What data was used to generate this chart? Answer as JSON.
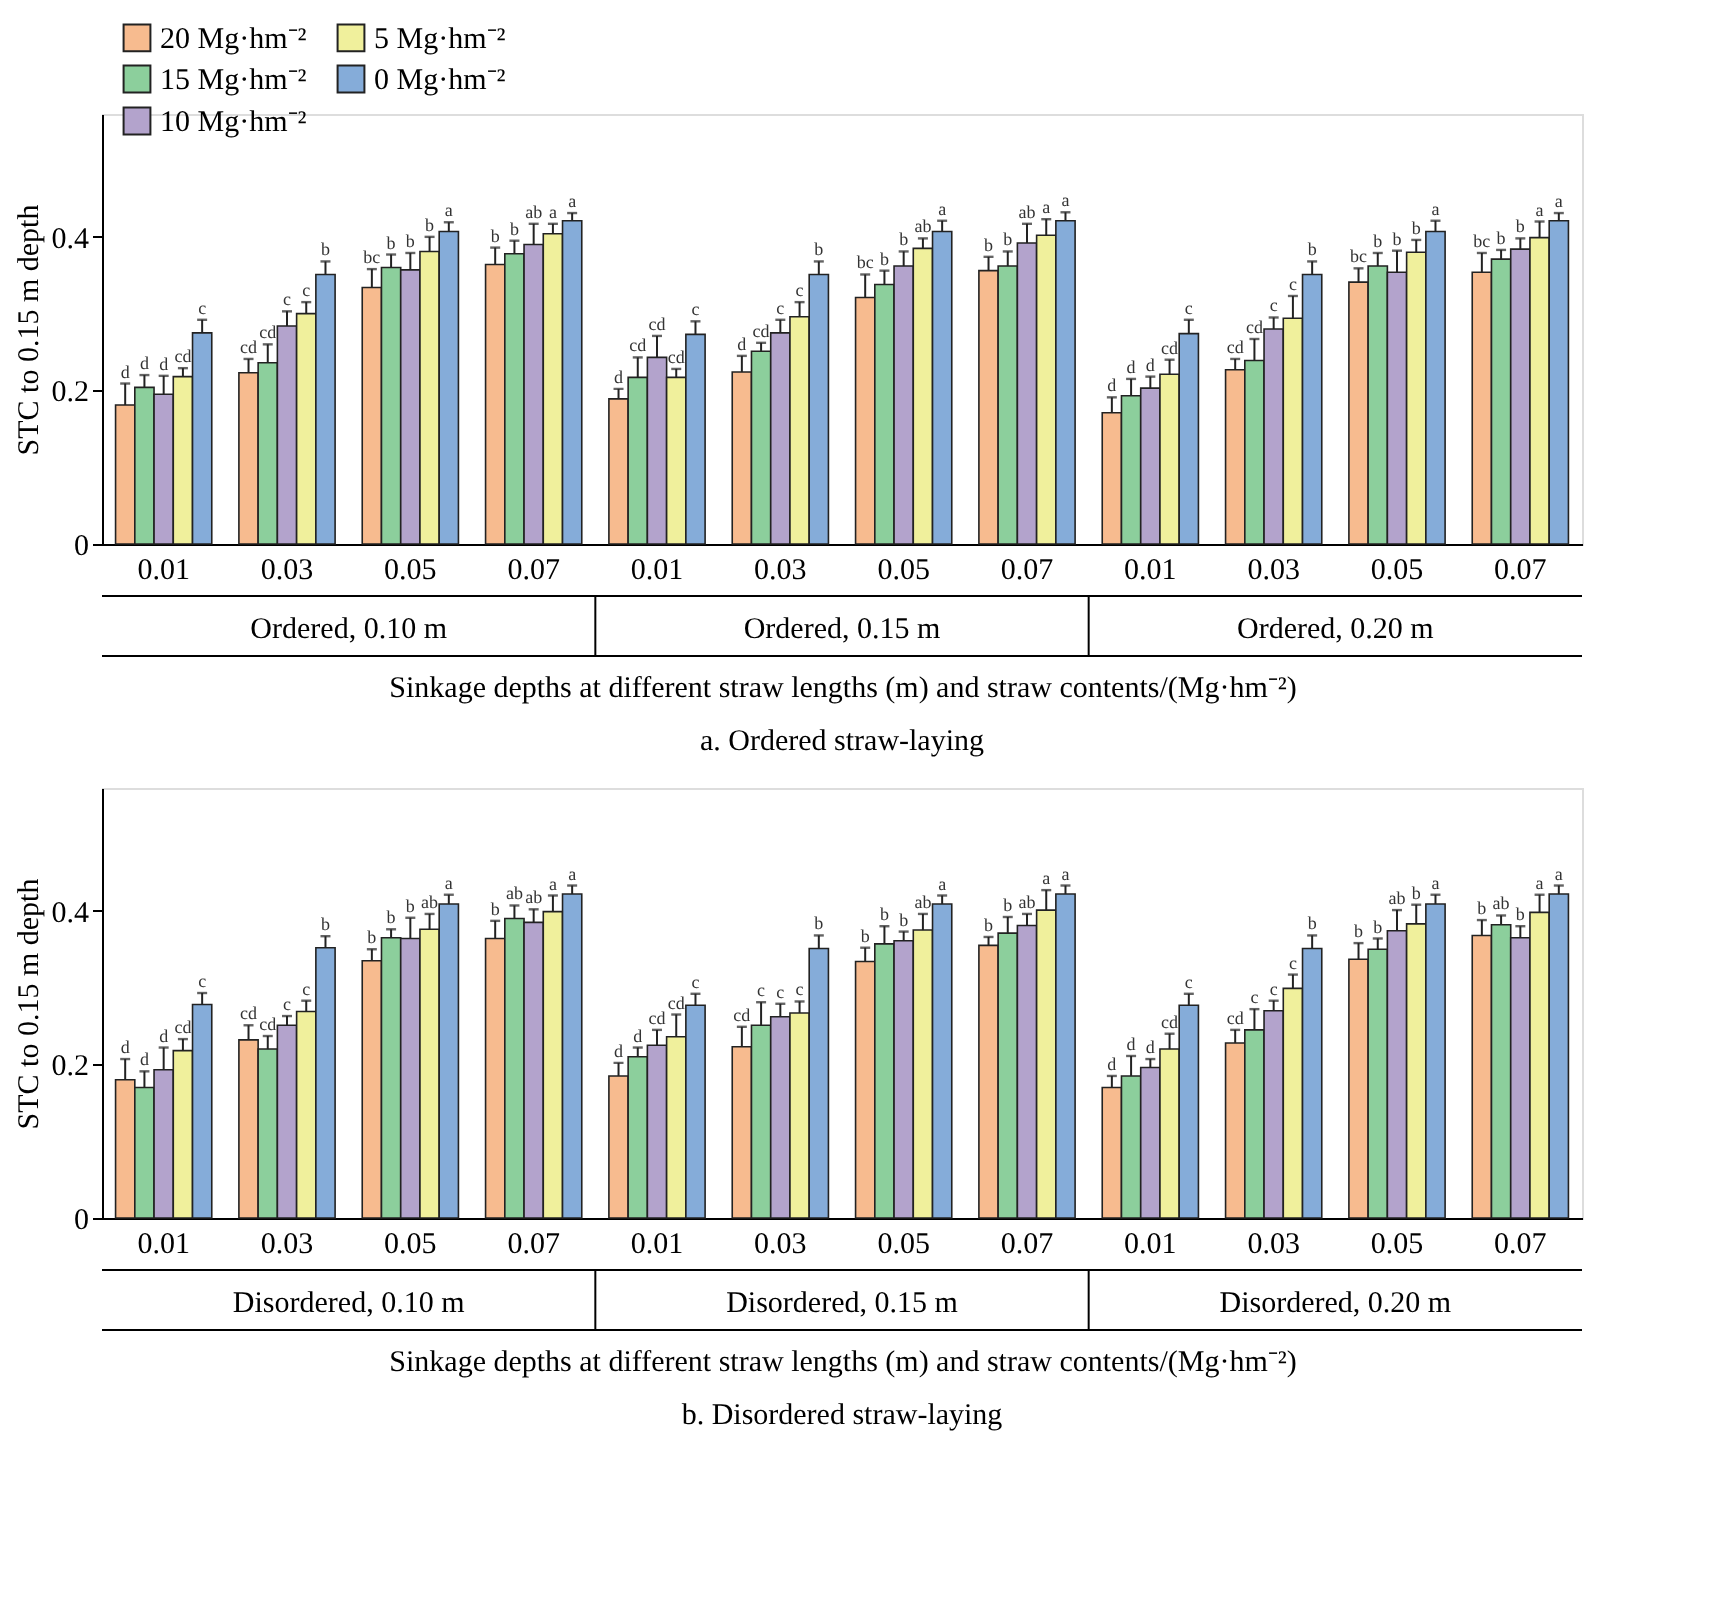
{
  "chart_data": [
    {
      "type": "bar",
      "title": "a. Ordered straw-laying",
      "xlabel": "Sinkage depths at different straw lengths (m) and straw contents/(Mg·hm⁻²)",
      "ylabel": "STC to 0.15 m depth",
      "categories": [
        "0.01",
        "0.03",
        "0.05",
        "0.07",
        "0.01",
        "0.03",
        "0.05",
        "0.07",
        "0.01",
        "0.03",
        "0.05",
        "0.07"
      ],
      "annotations": [
        "Ordered, 0.10 m",
        "Ordered, 0.15 m",
        "Ordered, 0.20 m"
      ],
      "ylim": [
        0,
        0.56
      ],
      "yticks": [
        0,
        0.2,
        0.4
      ],
      "grid": false,
      "legend": "top left",
      "series": [
        {
          "name": "20 Mg·hm⁻²",
          "color": "#f7bb8f",
          "values": [
            0.181,
            0.223,
            0.334,
            0.364,
            0.189,
            0.224,
            0.321,
            0.356,
            0.171,
            0.227,
            0.341,
            0.354
          ],
          "errors": [
            0.028,
            0.018,
            0.024,
            0.022,
            0.013,
            0.021,
            0.03,
            0.018,
            0.02,
            0.014,
            0.018,
            0.025
          ],
          "value_labels": [
            "d",
            "cd",
            "bc",
            "b",
            "d",
            "d",
            "bc",
            "b",
            "d",
            "cd",
            "bc",
            "bc"
          ]
        },
        {
          "name": "15 Mg·hm⁻²",
          "color": "#8ccf9c",
          "values": [
            0.204,
            0.236,
            0.36,
            0.378,
            0.217,
            0.251,
            0.338,
            0.362,
            0.193,
            0.239,
            0.362,
            0.371
          ],
          "errors": [
            0.016,
            0.024,
            0.017,
            0.017,
            0.026,
            0.011,
            0.018,
            0.019,
            0.022,
            0.028,
            0.017,
            0.012
          ],
          "value_labels": [
            "d",
            "cd",
            "b",
            "b",
            "cd",
            "cd",
            "b",
            "b",
            "d",
            "cd",
            "b",
            "b"
          ]
        },
        {
          "name": "10 Mg·hm⁻²",
          "color": "#b3a3cc",
          "values": [
            0.195,
            0.284,
            0.357,
            0.39,
            0.243,
            0.275,
            0.362,
            0.392,
            0.203,
            0.28,
            0.354,
            0.384
          ],
          "errors": [
            0.024,
            0.019,
            0.022,
            0.027,
            0.028,
            0.017,
            0.019,
            0.025,
            0.015,
            0.015,
            0.028,
            0.014
          ],
          "value_labels": [
            "d",
            "c",
            "b",
            "ab",
            "cd",
            "c",
            "b",
            "ab",
            "d",
            "c",
            "b",
            "b"
          ]
        },
        {
          "name": "5 Mg·hm⁻²",
          "color": "#f0f09c",
          "values": [
            0.218,
            0.3,
            0.381,
            0.404,
            0.217,
            0.296,
            0.385,
            0.402,
            0.221,
            0.294,
            0.38,
            0.399
          ],
          "errors": [
            0.011,
            0.015,
            0.019,
            0.013,
            0.011,
            0.019,
            0.013,
            0.021,
            0.019,
            0.029,
            0.016,
            0.021
          ],
          "value_labels": [
            "cd",
            "c",
            "b",
            "a",
            "cd",
            "c",
            "ab",
            "a",
            "cd",
            "c",
            "b",
            "a"
          ]
        },
        {
          "name": "0 Mg·hm⁻²",
          "color": "#85acd9",
          "values": [
            0.275,
            0.351,
            0.407,
            0.421,
            0.273,
            0.351,
            0.407,
            0.421,
            0.274,
            0.351,
            0.407,
            0.421
          ],
          "errors": [
            0.017,
            0.017,
            0.012,
            0.01,
            0.017,
            0.017,
            0.014,
            0.011,
            0.018,
            0.017,
            0.014,
            0.01
          ],
          "value_labels": [
            "c",
            "b",
            "a",
            "a",
            "c",
            "b",
            "a",
            "a",
            "c",
            "b",
            "a",
            "a"
          ]
        }
      ]
    },
    {
      "type": "bar",
      "title": "b. Disordered straw-laying",
      "xlabel": "Sinkage depths at different straw lengths (m) and straw contents/(Mg·hm⁻²)",
      "ylabel": "STC to 0.15 m depth",
      "categories": [
        "0.01",
        "0.03",
        "0.05",
        "0.07",
        "0.01",
        "0.03",
        "0.05",
        "0.07",
        "0.01",
        "0.03",
        "0.05",
        "0.07"
      ],
      "annotations": [
        "Disordered, 0.10 m",
        "Disordered, 0.15 m",
        "Disordered, 0.20 m"
      ],
      "ylim": [
        0,
        0.56
      ],
      "yticks": [
        0,
        0.2,
        0.4
      ],
      "grid": false,
      "series": [
        {
          "color": "#f7bb8f",
          "values": [
            0.18,
            0.232,
            0.335,
            0.364,
            0.185,
            0.223,
            0.334,
            0.355,
            0.17,
            0.228,
            0.337,
            0.368
          ],
          "errors": [
            0.027,
            0.019,
            0.015,
            0.023,
            0.017,
            0.026,
            0.018,
            0.011,
            0.015,
            0.017,
            0.021,
            0.02
          ],
          "value_labels": [
            "d",
            "cd",
            "b",
            "b",
            "d",
            "cd",
            "b",
            "b",
            "d",
            "cd",
            "b",
            "b"
          ]
        },
        {
          "color": "#8ccf9c",
          "values": [
            0.17,
            0.22,
            0.365,
            0.39,
            0.21,
            0.251,
            0.357,
            0.371,
            0.185,
            0.245,
            0.35,
            0.382
          ],
          "errors": [
            0.021,
            0.017,
            0.011,
            0.017,
            0.012,
            0.03,
            0.023,
            0.021,
            0.026,
            0.027,
            0.014,
            0.012
          ],
          "value_labels": [
            "d",
            "cd",
            "b",
            "ab",
            "d",
            "c",
            "b",
            "b",
            "d",
            "c",
            "b",
            "ab"
          ]
        },
        {
          "color": "#b3a3cc",
          "values": [
            0.193,
            0.251,
            0.364,
            0.385,
            0.225,
            0.262,
            0.361,
            0.381,
            0.196,
            0.27,
            0.374,
            0.365
          ],
          "errors": [
            0.029,
            0.012,
            0.027,
            0.017,
            0.02,
            0.017,
            0.012,
            0.015,
            0.011,
            0.013,
            0.027,
            0.015
          ],
          "value_labels": [
            "d",
            "c",
            "b",
            "ab",
            "cd",
            "c",
            "b",
            "ab",
            "d",
            "c",
            "ab",
            "b"
          ]
        },
        {
          "color": "#f0f09c",
          "values": [
            0.218,
            0.269,
            0.376,
            0.399,
            0.236,
            0.267,
            0.375,
            0.401,
            0.22,
            0.299,
            0.383,
            0.398
          ],
          "errors": [
            0.015,
            0.014,
            0.02,
            0.021,
            0.029,
            0.015,
            0.021,
            0.026,
            0.02,
            0.018,
            0.025,
            0.023
          ],
          "value_labels": [
            "cd",
            "c",
            "ab",
            "a",
            "cd",
            "c",
            "ab",
            "a",
            "cd",
            "c",
            "b",
            "a"
          ]
        },
        {
          "color": "#85acd9",
          "values": [
            0.278,
            0.352,
            0.409,
            0.422,
            0.277,
            0.351,
            0.409,
            0.422,
            0.277,
            0.351,
            0.409,
            0.422
          ],
          "errors": [
            0.015,
            0.015,
            0.012,
            0.011,
            0.015,
            0.017,
            0.011,
            0.011,
            0.015,
            0.017,
            0.012,
            0.011
          ],
          "value_labels": [
            "c",
            "b",
            "a",
            "a",
            "c",
            "b",
            "a",
            "a",
            "c",
            "b",
            "a",
            "a"
          ]
        }
      ]
    }
  ]
}
